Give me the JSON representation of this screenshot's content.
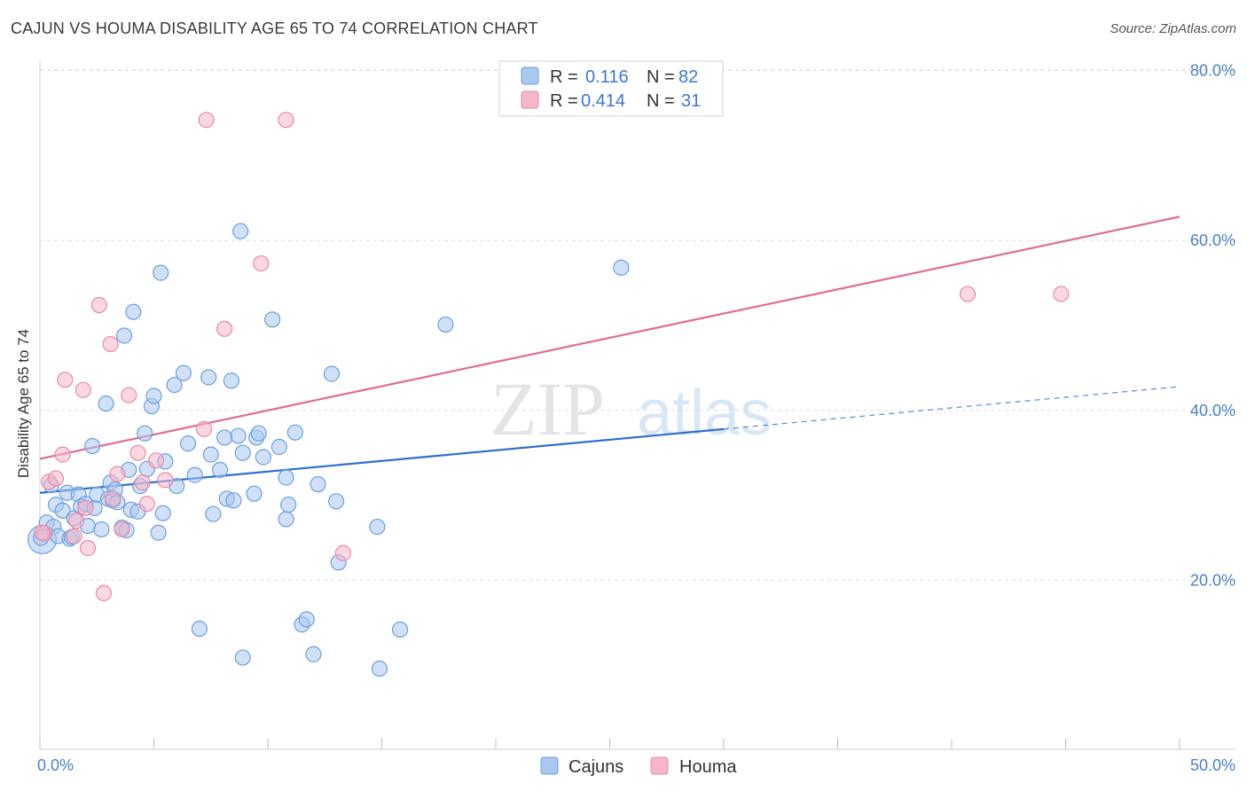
{
  "header": {
    "title": "CAJUN VS HOUMA DISABILITY AGE 65 TO 74 CORRELATION CHART",
    "source": "Source: ZipAtlas.com"
  },
  "watermark": {
    "zip": "ZIP",
    "atlas": "atlas"
  },
  "legend_top": {
    "rows": [
      {
        "r_label": "R =",
        "r_value": "0.116",
        "n_label": "N =",
        "n_value": "82",
        "color": "#a9c8f0"
      },
      {
        "r_label": "R =",
        "r_value": "0.414",
        "n_label": "N =",
        "n_value": "31",
        "color": "#f5b6c8"
      }
    ]
  },
  "legend_bottom": {
    "items": [
      {
        "label": "Cajuns",
        "color": "#a9c8f0"
      },
      {
        "label": "Houma",
        "color": "#f5b6c8"
      }
    ]
  },
  "chart_data": {
    "type": "scatter",
    "title": "CAJUN VS HOUMA DISABILITY AGE 65 TO 74 CORRELATION CHART",
    "xlabel": "",
    "ylabel": "Disability Age 65 to 74",
    "xlim": [
      0,
      50
    ],
    "ylim": [
      0,
      83
    ],
    "x_tick_labels": [
      "0.0%",
      "50.0%"
    ],
    "y_ticks": [
      20,
      40,
      60,
      80
    ],
    "y_tick_labels": [
      "20.0%",
      "40.0%",
      "60.0%",
      "80.0%"
    ],
    "grid": true,
    "series": [
      {
        "name": "Cajuns",
        "color": "#a9c8f0",
        "stroke": "#6a9fe0",
        "trend": {
          "x0": 0,
          "y0": 30.3,
          "x1": 30,
          "y1": 37.8,
          "dashed_to_x": 50,
          "dashed_to_y": 42.8,
          "color": "#2f6fd0"
        },
        "points": [
          [
            0.1,
            24.8
          ],
          [
            0.3,
            26.8
          ],
          [
            0.5,
            31.2
          ],
          [
            0.6,
            26.3
          ],
          [
            0.7,
            28.9
          ],
          [
            0.8,
            25.2
          ],
          [
            1.0,
            28.2
          ],
          [
            1.2,
            30.3
          ],
          [
            1.3,
            24.9
          ],
          [
            1.5,
            27.3
          ],
          [
            1.7,
            30.1
          ],
          [
            1.8,
            28.7
          ],
          [
            2.0,
            29.0
          ],
          [
            2.1,
            26.4
          ],
          [
            2.3,
            35.8
          ],
          [
            2.4,
            28.5
          ],
          [
            2.5,
            30.1
          ],
          [
            2.7,
            26.0
          ],
          [
            2.9,
            40.8
          ],
          [
            3.0,
            29.6
          ],
          [
            3.1,
            31.5
          ],
          [
            3.2,
            29.4
          ],
          [
            3.3,
            30.7
          ],
          [
            3.4,
            29.2
          ],
          [
            3.6,
            26.2
          ],
          [
            3.7,
            48.8
          ],
          [
            3.8,
            25.9
          ],
          [
            3.9,
            33.0
          ],
          [
            4.0,
            28.3
          ],
          [
            4.1,
            51.6
          ],
          [
            4.3,
            28.1
          ],
          [
            4.4,
            31.1
          ],
          [
            4.6,
            37.3
          ],
          [
            4.7,
            33.1
          ],
          [
            4.9,
            40.5
          ],
          [
            5.0,
            41.7
          ],
          [
            5.2,
            25.6
          ],
          [
            5.3,
            56.2
          ],
          [
            5.4,
            27.9
          ],
          [
            5.5,
            34.0
          ],
          [
            5.9,
            43.0
          ],
          [
            6.0,
            31.1
          ],
          [
            6.3,
            44.4
          ],
          [
            6.5,
            36.1
          ],
          [
            6.8,
            32.4
          ],
          [
            7.0,
            14.3
          ],
          [
            7.4,
            43.9
          ],
          [
            7.5,
            34.8
          ],
          [
            7.6,
            27.8
          ],
          [
            7.9,
            33.0
          ],
          [
            8.1,
            36.8
          ],
          [
            8.2,
            29.6
          ],
          [
            8.4,
            43.5
          ],
          [
            8.5,
            29.4
          ],
          [
            8.7,
            37.0
          ],
          [
            8.8,
            61.1
          ],
          [
            8.9,
            35.0
          ],
          [
            8.9,
            10.9
          ],
          [
            9.4,
            30.2
          ],
          [
            9.5,
            36.8
          ],
          [
            9.6,
            37.3
          ],
          [
            9.8,
            34.5
          ],
          [
            10.2,
            50.7
          ],
          [
            10.5,
            35.7
          ],
          [
            10.8,
            32.1
          ],
          [
            10.8,
            27.2
          ],
          [
            10.9,
            28.9
          ],
          [
            11.2,
            37.4
          ],
          [
            11.5,
            14.8
          ],
          [
            11.7,
            15.4
          ],
          [
            12.0,
            11.3
          ],
          [
            12.2,
            31.3
          ],
          [
            12.8,
            44.3
          ],
          [
            13.0,
            29.3
          ],
          [
            13.1,
            22.1
          ],
          [
            14.8,
            26.3
          ],
          [
            14.9,
            9.6
          ],
          [
            15.8,
            14.2
          ],
          [
            17.8,
            50.1
          ],
          [
            25.5,
            56.8
          ],
          [
            0.05,
            25.0
          ],
          [
            1.4,
            25.1
          ]
        ],
        "point_sizes": {
          "large_point_index": 0
        }
      },
      {
        "name": "Houma",
        "color": "#f5b6c8",
        "stroke": "#e88aa8",
        "trend": {
          "x0": 0,
          "y0": 34.3,
          "x1": 50,
          "y1": 62.8,
          "color": "#e26b93"
        },
        "points": [
          [
            0.2,
            25.5
          ],
          [
            0.4,
            31.6
          ],
          [
            0.7,
            32.0
          ],
          [
            1.0,
            34.8
          ],
          [
            1.1,
            43.6
          ],
          [
            1.5,
            25.2
          ],
          [
            1.6,
            27.0
          ],
          [
            1.9,
            42.4
          ],
          [
            2.0,
            28.5
          ],
          [
            2.1,
            23.8
          ],
          [
            2.6,
            52.4
          ],
          [
            2.8,
            18.5
          ],
          [
            3.1,
            47.8
          ],
          [
            3.2,
            29.6
          ],
          [
            3.4,
            32.5
          ],
          [
            3.6,
            26.0
          ],
          [
            3.9,
            41.8
          ],
          [
            4.3,
            35.0
          ],
          [
            4.5,
            31.5
          ],
          [
            4.7,
            29.0
          ],
          [
            5.1,
            34.1
          ],
          [
            5.5,
            31.8
          ],
          [
            7.2,
            37.8
          ],
          [
            7.3,
            74.2
          ],
          [
            8.1,
            49.6
          ],
          [
            9.7,
            57.3
          ],
          [
            10.8,
            74.2
          ],
          [
            13.3,
            23.2
          ],
          [
            40.7,
            53.7
          ],
          [
            44.8,
            53.7
          ],
          [
            0.1,
            25.6
          ]
        ]
      }
    ]
  }
}
